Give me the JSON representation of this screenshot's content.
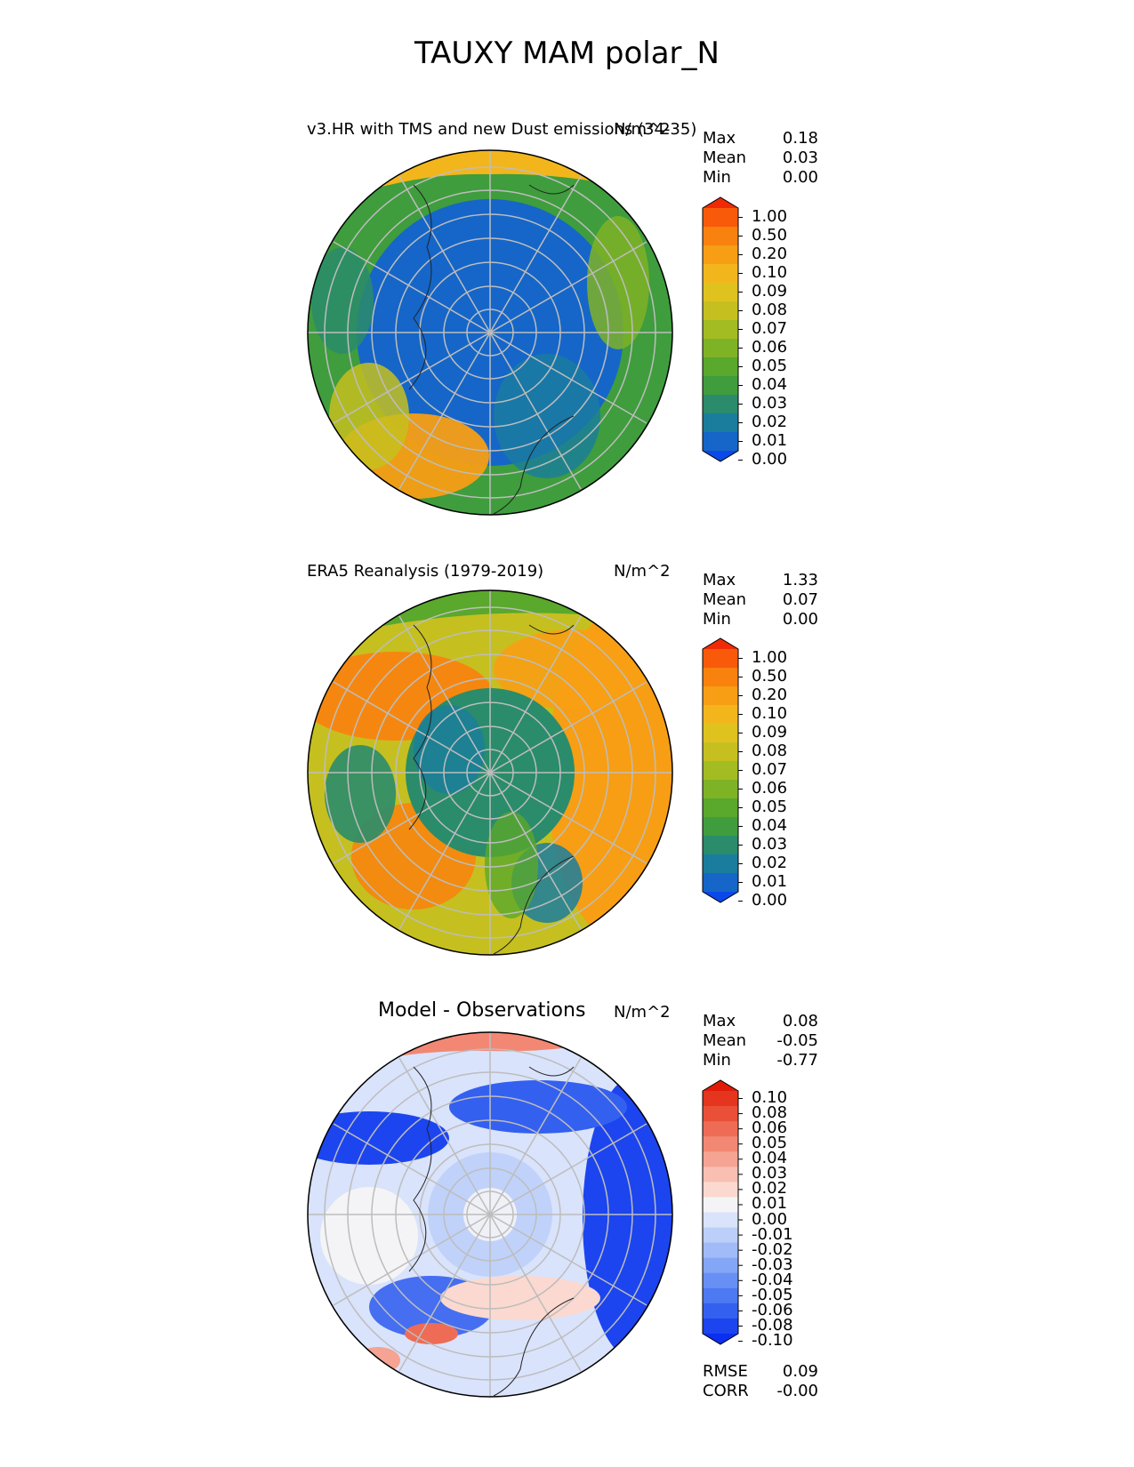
{
  "figure_title": "TAUXY MAM polar_N",
  "panels": [
    {
      "title": "v3.HR with TMS and new Dust emissions (34-35)",
      "units": "N/m^2",
      "stats": [
        {
          "label": "Max",
          "value": "0.18"
        },
        {
          "label": "Mean",
          "value": "0.03"
        },
        {
          "label": "Min",
          "value": "0.00"
        }
      ],
      "colorbar_ticks": [
        "1.00",
        "0.50",
        "0.20",
        "0.10",
        "0.09",
        "0.08",
        "0.07",
        "0.06",
        "0.05",
        "0.04",
        "0.03",
        "0.02",
        "0.01",
        "0.00"
      ]
    },
    {
      "title": "ERA5 Reanalysis (1979-2019)",
      "units": "N/m^2",
      "stats": [
        {
          "label": "Max",
          "value": "1.33"
        },
        {
          "label": "Mean",
          "value": "0.07"
        },
        {
          "label": "Min",
          "value": "0.00"
        }
      ],
      "colorbar_ticks": [
        "1.00",
        "0.50",
        "0.20",
        "0.10",
        "0.09",
        "0.08",
        "0.07",
        "0.06",
        "0.05",
        "0.04",
        "0.03",
        "0.02",
        "0.01",
        "0.00"
      ]
    },
    {
      "title": "Model - Observations",
      "units": "N/m^2",
      "stats": [
        {
          "label": "Max",
          "value": "0.08"
        },
        {
          "label": "Mean",
          "value": "-0.05"
        },
        {
          "label": "Min",
          "value": "-0.77"
        }
      ],
      "colorbar_ticks": [
        "0.10",
        "0.08",
        "0.06",
        "0.05",
        "0.04",
        "0.03",
        "0.02",
        "0.01",
        "0.00",
        "-0.01",
        "-0.02",
        "-0.03",
        "-0.04",
        "-0.05",
        "-0.06",
        "-0.08",
        "-0.10"
      ],
      "metrics": [
        {
          "label": "RMSE",
          "value": "0.09"
        },
        {
          "label": "CORR",
          "value": "-0.00"
        }
      ]
    }
  ],
  "chart_data": [
    {
      "type": "heatmap",
      "projection": "north polar stereographic",
      "title": "v3.HR with TMS and new Dust emissions (34-35)",
      "units": "N/m^2",
      "stats": {
        "max": 0.18,
        "mean": 0.03,
        "min": 0.0
      },
      "levels": [
        0.0,
        0.01,
        0.02,
        0.03,
        0.04,
        0.05,
        0.06,
        0.07,
        0.08,
        0.09,
        0.1,
        0.2,
        0.5,
        1.0
      ],
      "colors": [
        "#0a49e8",
        "#1566c8",
        "#1a7d9e",
        "#2a8c6a",
        "#3f9d3d",
        "#5aa82c",
        "#7fb326",
        "#a3bc22",
        "#c5c01f",
        "#e0c21e",
        "#f2b61c",
        "#f79e14",
        "#f9810e",
        "#f85a0a",
        "#ef2a05"
      ]
    },
    {
      "type": "heatmap",
      "projection": "north polar stereographic",
      "title": "ERA5 Reanalysis (1979-2019)",
      "units": "N/m^2",
      "stats": {
        "max": 1.33,
        "mean": 0.07,
        "min": 0.0
      },
      "levels": [
        0.0,
        0.01,
        0.02,
        0.03,
        0.04,
        0.05,
        0.06,
        0.07,
        0.08,
        0.09,
        0.1,
        0.2,
        0.5,
        1.0
      ],
      "colors": [
        "#0a49e8",
        "#1566c8",
        "#1a7d9e",
        "#2a8c6a",
        "#3f9d3d",
        "#5aa82c",
        "#7fb326",
        "#a3bc22",
        "#c5c01f",
        "#e0c21e",
        "#f2b61c",
        "#f79e14",
        "#f9810e",
        "#f85a0a",
        "#ef2a05"
      ]
    },
    {
      "type": "heatmap",
      "projection": "north polar stereographic",
      "title": "Model - Observations",
      "units": "N/m^2",
      "stats": {
        "max": 0.08,
        "mean": -0.05,
        "min": -0.77
      },
      "metrics": {
        "rmse": 0.09,
        "corr": -0.0
      },
      "levels": [
        -0.1,
        -0.08,
        -0.06,
        -0.05,
        -0.04,
        -0.03,
        -0.02,
        -0.01,
        0.0,
        0.01,
        0.02,
        0.03,
        0.04,
        0.05,
        0.06,
        0.08,
        0.1
      ],
      "colors": [
        "#0a2ff0",
        "#1c45ef",
        "#3460f0",
        "#4d79f2",
        "#6890f4",
        "#84a6f6",
        "#a0bbf8",
        "#bccff9",
        "#d9e3fb",
        "#f4f4f6",
        "#fbd9d0",
        "#f8bfb2",
        "#f5a393",
        "#f28874",
        "#ee6c56",
        "#ea5038",
        "#e5351e",
        "#e01a08"
      ]
    }
  ]
}
